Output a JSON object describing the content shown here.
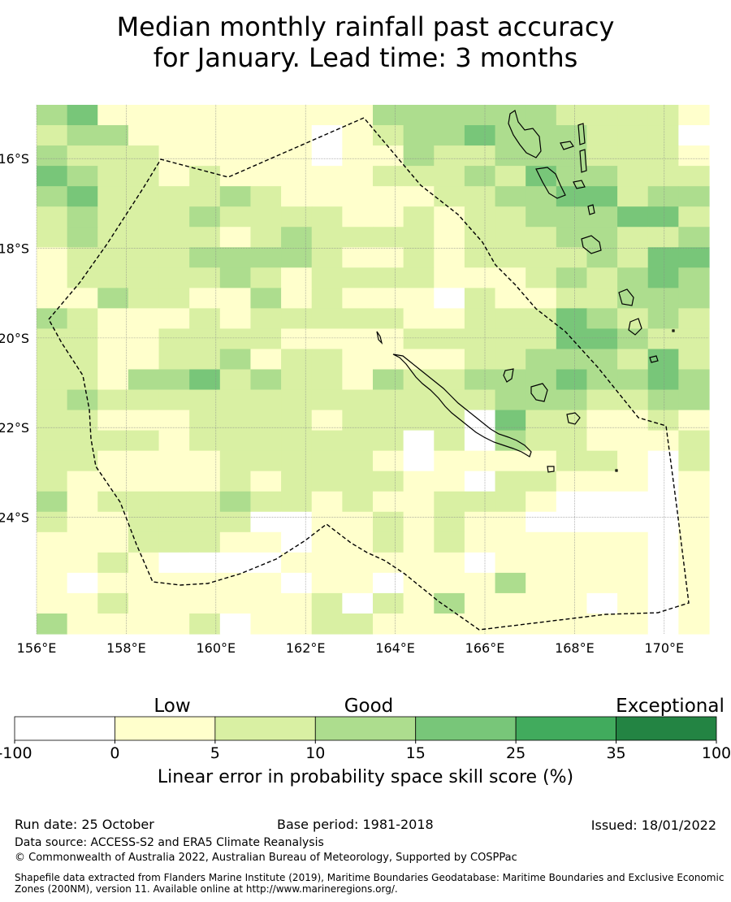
{
  "title_line1": "Median monthly rainfall past accuracy",
  "title_line2": "for January. Lead time: 3 months",
  "map": {
    "lon_labels": [
      "156°E",
      "158°E",
      "160°E",
      "162°E",
      "164°E",
      "166°E",
      "168°E",
      "170°E"
    ],
    "lat_labels": [
      "16°S",
      "18°S",
      "20°S",
      "22°S",
      "24°S"
    ],
    "lon_min": 156.0,
    "lon_max": 171.0,
    "lat_top": -14.8,
    "lat_bottom": -26.6,
    "palette": [
      "#ffffff",
      "#ffffcc",
      "#d9f0a3",
      "#addd8e",
      "#78c679",
      "#41ab5d",
      "#238443"
    ],
    "grid_rows": [
      "3411111111133333322221",
      "2331111110123343332220",
      "3222111110113223332221",
      "4322121111122232433222",
      "3422223211111223344233",
      "2322232222112122333442",
      "2322221232222122233223",
      "1222233332112122223244",
      "1222223212222111232343",
      "1132211312111021122333",
      "3211121222221122243232",
      "2211222211112222244322",
      "2211223122111122333242",
      "2213342322132233343343",
      "2322222222222223332233",
      "2211122221222204221121",
      "2222122222220203221112",
      "2211112222210111122102",
      "2111112122221102211101",
      "3122223221211222100001",
      "2112222001121211000001",
      "1112221101121211111101",
      "1121000011111101111101",
      "1011111101101113111101",
      "1121111112021311110101",
      "3111120112211111111101"
    ]
  },
  "colorbar": {
    "categories": [
      "Low",
      "Good",
      "Exceptional"
    ],
    "ticks": [
      "-100",
      "0",
      "5",
      "10",
      "15",
      "25",
      "35",
      "100"
    ],
    "colors": [
      "#ffffff",
      "#ffffcc",
      "#d9f0a3",
      "#addd8e",
      "#78c679",
      "#41ab5d",
      "#238443"
    ],
    "title": "Linear error in probability space skill score (%)"
  },
  "footer": {
    "run_date": "Run date: 25 October",
    "base_period": "Base period: 1981-2018",
    "issued": "Issued: 18/01/2022",
    "data_source": "Data source: ACCESS-S2 and ERA5 Climate Reanalysis",
    "copyright": "© Commonwealth of Australia 2022, Australian Bureau of Meteorology, Supported by COSPPac",
    "shapefile_line1": "Shapefile data extracted from Flanders Marine Institute (2019), Maritime Boundaries Geodatabase: Maritime Boundaries and Exclusive Economic",
    "shapefile_line2": "Zones (200NM), version 11. Available online at http://www.marineregions.org/."
  }
}
